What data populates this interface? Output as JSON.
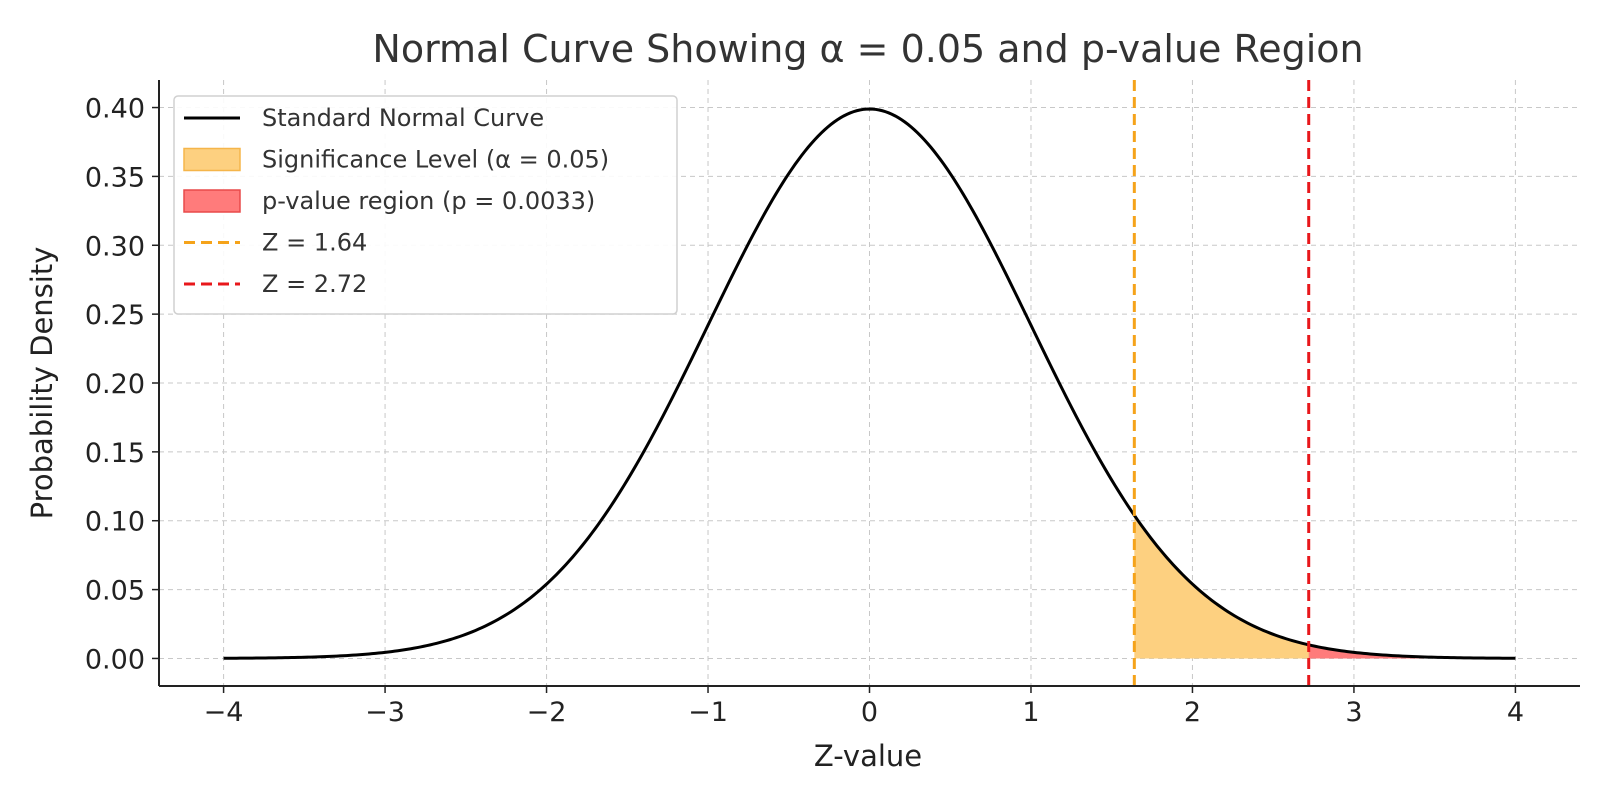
{
  "chart_data": {
    "type": "line",
    "title": "Normal Curve Showing α = 0.05 and p-value Region",
    "xlabel": "Z-value",
    "ylabel": "Probability Density",
    "xlim": [
      -4.4,
      4.4
    ],
    "ylim": [
      -0.02,
      0.42
    ],
    "x_ticks": [
      -4,
      -3,
      -2,
      -1,
      0,
      1,
      2,
      3,
      4
    ],
    "x_tick_labels": [
      "−4",
      "−3",
      "−2",
      "−1",
      "0",
      "1",
      "2",
      "3",
      "4"
    ],
    "y_ticks": [
      0.0,
      0.05,
      0.1,
      0.15,
      0.2,
      0.25,
      0.3,
      0.35,
      0.4
    ],
    "y_tick_labels": [
      "0.00",
      "0.05",
      "0.10",
      "0.15",
      "0.20",
      "0.25",
      "0.30",
      "0.35",
      "0.40"
    ],
    "grid": true,
    "legend_position": "top-left",
    "curve": {
      "name": "Standard Normal Curve",
      "x_range": [
        -4,
        4
      ],
      "mean": 0,
      "std": 1,
      "color": "#000000"
    },
    "shaded_regions": [
      {
        "name": "Significance Level (α = 0.05)",
        "from": 1.64,
        "to": 4,
        "color": "#fdd080",
        "edge": "#f5b54a"
      },
      {
        "name": "p-value region (p = 0.0033)",
        "from": 2.72,
        "to": 4,
        "color": "#ff7b7b",
        "edge": "#e84a4a"
      }
    ],
    "vertical_lines": [
      {
        "name": "Z = 1.64",
        "x": 1.64,
        "color": "#f5a31a"
      },
      {
        "name": "Z = 2.72",
        "x": 2.72,
        "color": "#e8171b"
      }
    ]
  }
}
